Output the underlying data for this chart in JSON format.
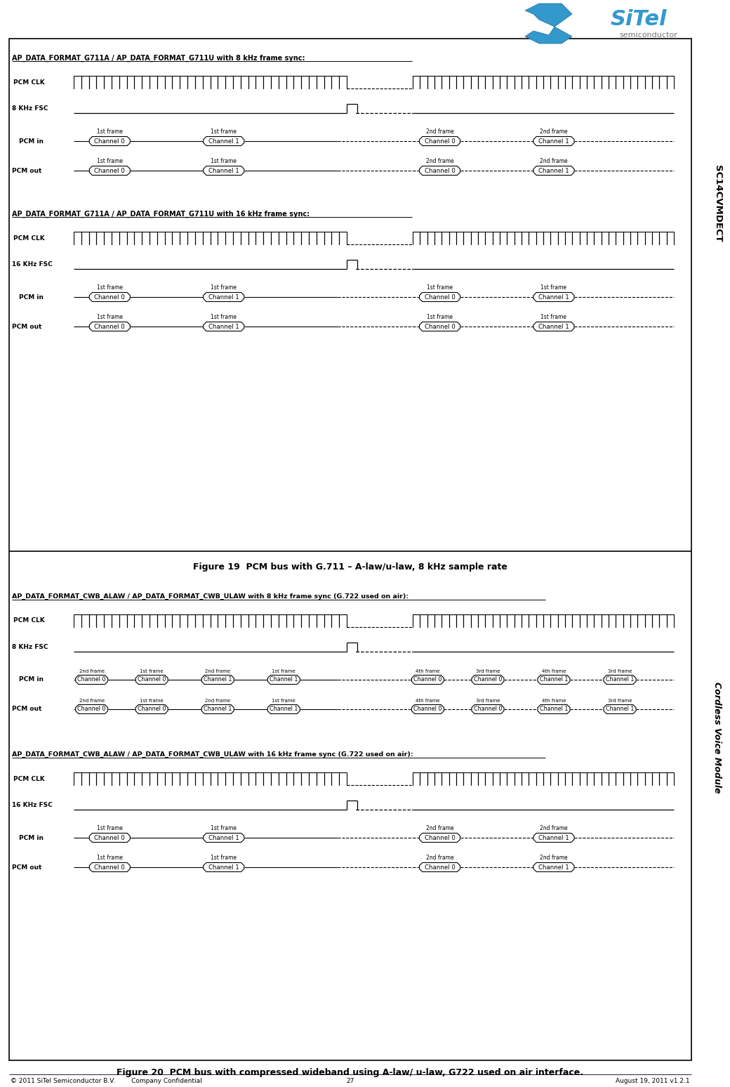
{
  "bg_color": "#ffffff",
  "figure_width": 10.4,
  "figure_height": 15.48,
  "footer_left": "© 2011 SiTel Semiconductor B.V.        Company Confidential",
  "footer_center": "27",
  "footer_right": "August 19, 2011 v1.2.1",
  "fig19_title": "Figure 19  PCM bus with G.711 – A-law/u-law, 8 kHz sample rate",
  "fig20_title": "Figure 20  PCM bus with compressed wideband using A-law/ u-law, G722 used on air interface.",
  "panel1_title": "AP_DATA_FORMAT_G711A / AP_DATA_FORMAT_G711U with 8 kHz frame sync:",
  "panel2_title": "AP_DATA_FORMAT_G711A / AP_DATA_FORMAT_G711U with 16 kHz frame sync:",
  "panel3_title": "AP_DATA_FORMAT_CWB_ALAW / AP_DATA_FORMAT_CWB_ULAW with 8 kHz frame sync (G.722 used on air):",
  "panel4_title": "AP_DATA_FORMAT_CWB_ALAW / AP_DATA_FORMAT_CWB_ULAW with 16 kHz frame sync (G.722 used on air):",
  "sidebar_top": "SC14CVMDECT",
  "sidebar_bot": "Cordless Voice Module"
}
